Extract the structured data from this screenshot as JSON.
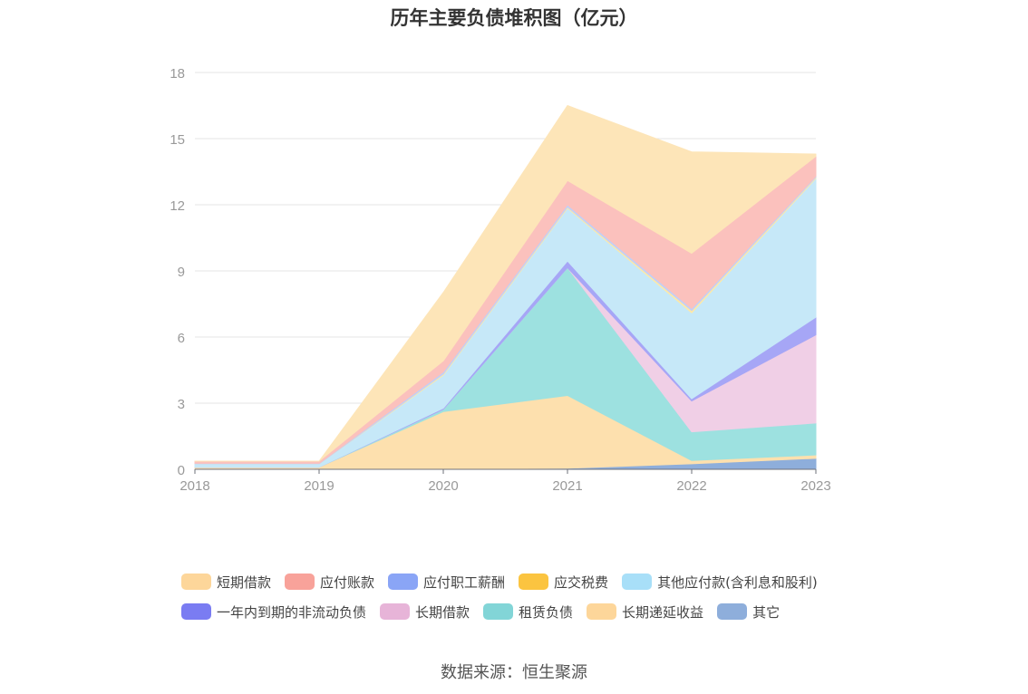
{
  "chart_data": {
    "type": "area",
    "stacked": true,
    "title": "历年主要负债堆积图（亿元）",
    "x": [
      "2018",
      "2019",
      "2020",
      "2021",
      "2022",
      "2023"
    ],
    "ylim": [
      0,
      18
    ],
    "yticks": [
      "0",
      "3",
      "6",
      "9",
      "12",
      "15",
      "18"
    ],
    "grid": true,
    "legend_position": "bottom",
    "series": [
      {
        "name": "其它",
        "color": "#8eaedb",
        "values": [
          0.02,
          0.02,
          0.02,
          0.05,
          0.25,
          0.5
        ]
      },
      {
        "name": "长期递延收益",
        "color": "#fde0ae",
        "values": [
          0.08,
          0.08,
          2.6,
          3.3,
          0.15,
          0.15
        ]
      },
      {
        "name": "租赁负债",
        "color": "#9de1e0",
        "values": [
          0.0,
          0.0,
          0.1,
          5.8,
          1.3,
          1.45
        ]
      },
      {
        "name": "长期借款",
        "color": "#f0cfe6",
        "values": [
          0.0,
          0.0,
          0.0,
          0.0,
          1.4,
          4.0
        ]
      },
      {
        "name": "一年内到期的非流动负债",
        "color": "#a6a6f6",
        "values": [
          0.0,
          0.0,
          0.05,
          0.3,
          0.1,
          0.8
        ]
      },
      {
        "name": "其他应付款(含利息和股利)",
        "color": "#c6e8f8",
        "values": [
          0.15,
          0.15,
          1.5,
          2.4,
          3.9,
          6.3
        ]
      },
      {
        "name": "应交税费",
        "color": "#fde9a8",
        "values": [
          0.0,
          0.0,
          0.05,
          0.05,
          0.1,
          0.05
        ]
      },
      {
        "name": "应付职工薪酬",
        "color": "#c3cff6",
        "values": [
          0.02,
          0.02,
          0.1,
          0.1,
          0.1,
          0.05
        ]
      },
      {
        "name": "应付账款",
        "color": "#fbc1bd",
        "values": [
          0.1,
          0.1,
          0.5,
          1.1,
          2.5,
          0.9
        ]
      },
      {
        "name": "短期借款",
        "color": "#fde5b8",
        "values": [
          0.0,
          0.0,
          3.1,
          3.4,
          4.6,
          0.1
        ]
      }
    ]
  },
  "legend": {
    "rows": [
      [
        {
          "label": "短期借款",
          "color": "#fdd69a"
        },
        {
          "label": "应付账款",
          "color": "#f8a29a"
        },
        {
          "label": "应付职工薪酬",
          "color": "#8aa5f6"
        },
        {
          "label": "应交税费",
          "color": "#fbc440"
        },
        {
          "label": "其他应付款(含利息和股利)",
          "color": "#a8dff8"
        }
      ],
      [
        {
          "label": "一年内到期的非流动负债",
          "color": "#7a7cf2"
        },
        {
          "label": "长期借款",
          "color": "#e7b4d8"
        },
        {
          "label": "租赁负债",
          "color": "#82d5d7"
        },
        {
          "label": "长期递延收益",
          "color": "#fdd69a"
        },
        {
          "label": "其它",
          "color": "#8eaedb"
        }
      ]
    ]
  },
  "source": "数据来源：恒生聚源"
}
